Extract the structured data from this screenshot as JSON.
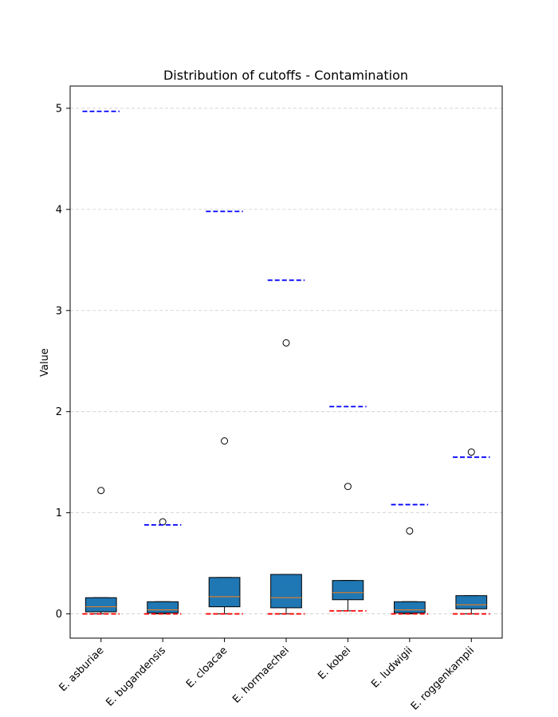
{
  "chart_data": {
    "type": "box",
    "title": "Distribution of cutoffs - Contamination",
    "xlabel": "",
    "ylabel": "Value",
    "ylim": [
      -0.24,
      5.22
    ],
    "yticks": [
      0,
      1,
      2,
      3,
      4,
      5
    ],
    "grid": "y-dashed",
    "categories": [
      "E. asburiae",
      "E. bugandensis",
      "E. cloacae",
      "E. hormaechei",
      "E. kobei",
      "E. ludwigii",
      "E. roggenkampii"
    ],
    "boxes": [
      {
        "q1": 0.02,
        "median": 0.07,
        "q3": 0.16,
        "whisker_low": 0.0,
        "whisker_high": 0.16,
        "outliers": [
          1.22
        ],
        "upper_cutoff": 4.97,
        "lower_cutoff": 0.0
      },
      {
        "q1": 0.01,
        "median": 0.04,
        "q3": 0.12,
        "whisker_low": 0.0,
        "whisker_high": 0.12,
        "outliers": [
          0.91
        ],
        "upper_cutoff": 0.88,
        "lower_cutoff": 0.0
      },
      {
        "q1": 0.07,
        "median": 0.17,
        "q3": 0.36,
        "whisker_low": 0.0,
        "whisker_high": 0.36,
        "outliers": [
          1.71
        ],
        "upper_cutoff": 3.98,
        "lower_cutoff": 0.0
      },
      {
        "q1": 0.06,
        "median": 0.16,
        "q3": 0.39,
        "whisker_low": 0.0,
        "whisker_high": 0.39,
        "outliers": [
          2.68
        ],
        "upper_cutoff": 3.3,
        "lower_cutoff": 0.0
      },
      {
        "q1": 0.14,
        "median": 0.21,
        "q3": 0.33,
        "whisker_low": 0.03,
        "whisker_high": 0.33,
        "outliers": [
          1.26
        ],
        "upper_cutoff": 2.05,
        "lower_cutoff": 0.03
      },
      {
        "q1": 0.01,
        "median": 0.04,
        "q3": 0.12,
        "whisker_low": 0.0,
        "whisker_high": 0.12,
        "outliers": [
          0.82
        ],
        "upper_cutoff": 1.08,
        "lower_cutoff": 0.0
      },
      {
        "q1": 0.05,
        "median": 0.09,
        "q3": 0.18,
        "whisker_low": 0.0,
        "whisker_high": 0.18,
        "outliers": [
          1.6
        ],
        "upper_cutoff": 1.55,
        "lower_cutoff": 0.0
      }
    ],
    "colors": {
      "box_fill": "#1f77b4",
      "median": "#ff7f0e",
      "upper_cutoff": "#0000ff",
      "lower_cutoff": "#ff0000",
      "grid": "#cccccc"
    }
  }
}
